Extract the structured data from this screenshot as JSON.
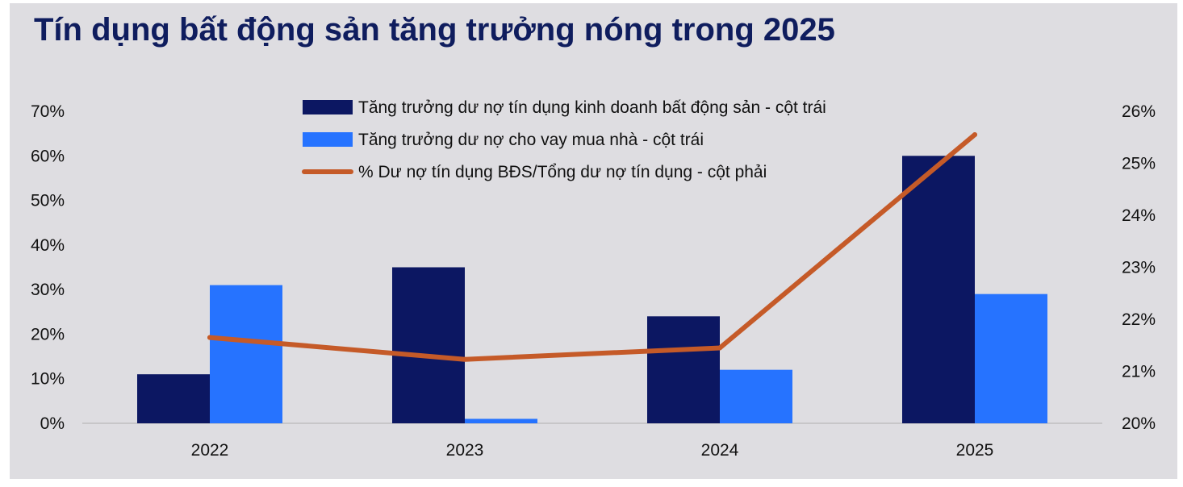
{
  "chart_data": {
    "type": "bar",
    "title": "Tín dụng bất động sản tăng trưởng nóng trong 2025",
    "categories": [
      "2022",
      "2023",
      "2024",
      "2025"
    ],
    "series": [
      {
        "name": "Tăng trưởng dư nợ tín dụng kinh doanh bất động sản - cột trái",
        "kind": "bar",
        "axis": "left",
        "color": "#0c1762",
        "values": [
          11,
          35,
          24,
          60
        ]
      },
      {
        "name": "Tăng trưởng dư nợ cho vay mua nhà - cột trái",
        "kind": "bar",
        "axis": "left",
        "color": "#2673ff",
        "values": [
          31,
          1,
          12,
          29
        ]
      },
      {
        "name": "% Dư nợ tín dụng BĐS/Tổng dư nợ tín dụng - cột phải",
        "kind": "line",
        "axis": "right",
        "color": "#c55a28",
        "values": [
          21.65,
          21.23,
          21.45,
          25.55
        ]
      }
    ],
    "y_left": {
      "min": 0,
      "max": 70,
      "ticks": [
        "0%",
        "10%",
        "20%",
        "30%",
        "40%",
        "50%",
        "60%",
        "70%"
      ]
    },
    "y_right": {
      "min": 20,
      "max": 26,
      "ticks": [
        "20%",
        "21%",
        "22%",
        "23%",
        "24%",
        "25%",
        "26%"
      ]
    },
    "legend_position": "top-center",
    "grid": false
  }
}
